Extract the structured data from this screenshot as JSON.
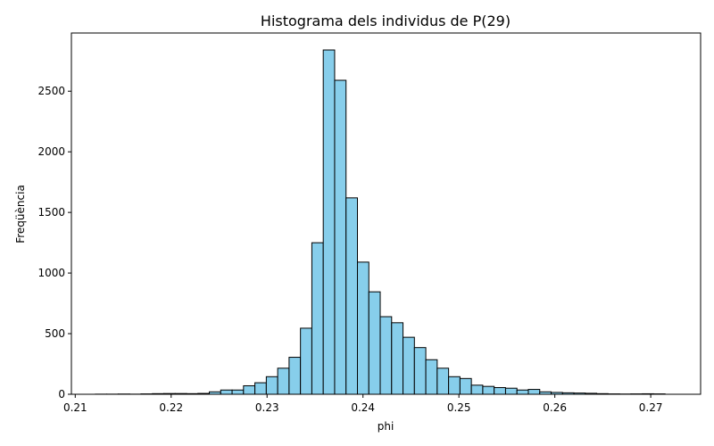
{
  "chart_data": {
    "type": "bar",
    "title": "Histograma dels individus de P(29)",
    "xlabel": "phi",
    "ylabel": "Freqüència",
    "xlim": [
      0.2096,
      0.2752
    ],
    "ylim": [
      0,
      2980
    ],
    "x_ticks": [
      0.21,
      0.22,
      0.23,
      0.24,
      0.25,
      0.26,
      0.27
    ],
    "x_tick_labels": [
      "0.21",
      "0.22",
      "0.23",
      "0.24",
      "0.25",
      "0.26",
      "0.27"
    ],
    "y_ticks": [
      0,
      500,
      1000,
      1500,
      2000,
      2500
    ],
    "y_tick_labels": [
      "0",
      "500",
      "1000",
      "1500",
      "2000",
      "2500"
    ],
    "bin_start": 0.2121,
    "bin_width": 0.0011879,
    "values": [
      1,
      1,
      2,
      1,
      3,
      5,
      6,
      6,
      5,
      7,
      20,
      35,
      35,
      70,
      95,
      145,
      215,
      305,
      545,
      1250,
      2840,
      2590,
      1620,
      1090,
      845,
      640,
      590,
      470,
      385,
      285,
      215,
      145,
      130,
      75,
      65,
      55,
      50,
      35,
      40,
      20,
      15,
      12,
      10,
      8,
      5,
      3,
      2,
      3,
      4,
      3
    ],
    "bar_color": "#87ceeb",
    "edge_color": "#000000",
    "grid": false
  }
}
